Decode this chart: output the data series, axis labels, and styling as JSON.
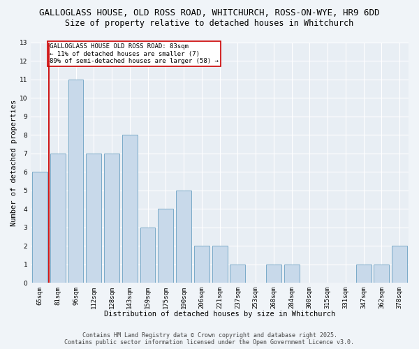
{
  "title1": "GALLOGLASS HOUSE, OLD ROSS ROAD, WHITCHURCH, ROSS-ON-WYE, HR9 6DD",
  "title2": "Size of property relative to detached houses in Whitchurch",
  "xlabel": "Distribution of detached houses by size in Whitchurch",
  "ylabel": "Number of detached properties",
  "categories": [
    "65sqm",
    "81sqm",
    "96sqm",
    "112sqm",
    "128sqm",
    "143sqm",
    "159sqm",
    "175sqm",
    "190sqm",
    "206sqm",
    "221sqm",
    "237sqm",
    "253sqm",
    "268sqm",
    "284sqm",
    "300sqm",
    "315sqm",
    "331sqm",
    "347sqm",
    "362sqm",
    "378sqm"
  ],
  "values": [
    6,
    7,
    11,
    7,
    7,
    8,
    3,
    4,
    5,
    2,
    2,
    1,
    0,
    1,
    1,
    0,
    0,
    0,
    1,
    1,
    2
  ],
  "bar_color": "#c8d9ea",
  "bar_edge_color": "#7aaac8",
  "subject_line_bar_index": 0,
  "subject_line_color": "#cc0000",
  "annotation_text": "GALLOGLASS HOUSE OLD ROSS ROAD: 83sqm\n← 11% of detached houses are smaller (7)\n89% of semi-detached houses are larger (58) →",
  "annotation_box_color": "white",
  "annotation_box_edge_color": "#cc0000",
  "ylim": [
    0,
    13
  ],
  "yticks": [
    0,
    1,
    2,
    3,
    4,
    5,
    6,
    7,
    8,
    9,
    10,
    11,
    12,
    13
  ],
  "footer1": "Contains HM Land Registry data © Crown copyright and database right 2025.",
  "footer2": "Contains public sector information licensed under the Open Government Licence v3.0.",
  "bg_color": "#f0f4f8",
  "plot_bg_color": "#e8eef4",
  "grid_color": "white",
  "title1_fontsize": 9,
  "title2_fontsize": 8.5,
  "label_fontsize": 7.5,
  "tick_fontsize": 6.5,
  "annot_fontsize": 6.5,
  "footer_fontsize": 6.0
}
